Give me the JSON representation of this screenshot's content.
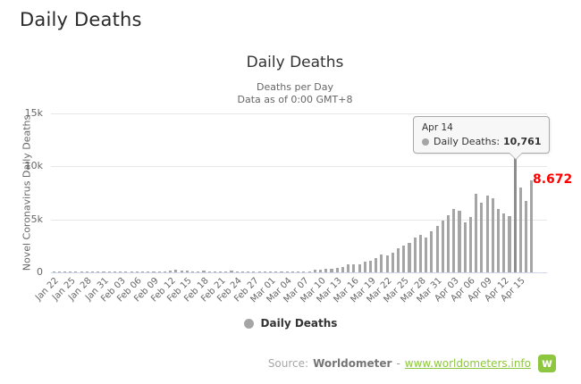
{
  "page": {
    "title": "Daily Deaths"
  },
  "chart": {
    "title": "Daily Deaths",
    "subtitle_line1": "Deaths per Day",
    "subtitle_line2": "Data as of 0:00 GMT+8",
    "y_axis_title": "Novel Coronavirus Daily Deaths",
    "legend_label": "Daily Deaths",
    "last_point_label": "8.672",
    "colors": {
      "bar": "#a5a5a5",
      "grid": "#e7e7e7",
      "axis_line": "#ccd6eb",
      "label_text": "#666666",
      "title_text": "#333333",
      "last_point_red": "#ff0000",
      "tooltip_bg": "#f7f7f7",
      "tooltip_border": "#a9a9a9",
      "brand_green": "#8dc63f"
    }
  },
  "tooltip": {
    "date": "Apr 14",
    "series_label": "Daily Deaths:",
    "value": "10,761"
  },
  "footer": {
    "source_label": "Source:",
    "source_name": "Worldometer",
    "separator": "-",
    "link": "www.worldometers.info",
    "logo_letter": "w"
  },
  "chart_data": {
    "type": "bar",
    "title": "Daily Deaths",
    "subtitle": [
      "Deaths per Day",
      "Data as of 0:00 GMT+8"
    ],
    "ylabel": "Novel Coronavirus Daily Deaths",
    "ylim": [
      0,
      15000
    ],
    "y_ticks": [
      "0",
      "5k",
      "10k",
      "15k"
    ],
    "grid": true,
    "legend": [
      "Daily Deaths"
    ],
    "legend_position": "bottom",
    "hover_index": 83,
    "hover_point": {
      "x": "Apr 14",
      "value": 10761
    },
    "last_point": {
      "x": "Apr 17",
      "value": 8672,
      "label": "8.672"
    },
    "x": [
      "Jan 22",
      "Jan 23",
      "Jan 24",
      "Jan 25",
      "Jan 26",
      "Jan 27",
      "Jan 28",
      "Jan 29",
      "Jan 30",
      "Jan 31",
      "Feb 01",
      "Feb 02",
      "Feb 03",
      "Feb 04",
      "Feb 05",
      "Feb 06",
      "Feb 07",
      "Feb 08",
      "Feb 09",
      "Feb 10",
      "Feb 11",
      "Feb 12",
      "Feb 13",
      "Feb 14",
      "Feb 15",
      "Feb 16",
      "Feb 17",
      "Feb 18",
      "Feb 19",
      "Feb 20",
      "Feb 21",
      "Feb 22",
      "Feb 23",
      "Feb 24",
      "Feb 25",
      "Feb 26",
      "Feb 27",
      "Feb 28",
      "Feb 29",
      "Mar 01",
      "Mar 02",
      "Mar 03",
      "Mar 04",
      "Mar 05",
      "Mar 06",
      "Mar 07",
      "Mar 08",
      "Mar 09",
      "Mar 10",
      "Mar 11",
      "Mar 12",
      "Mar 13",
      "Mar 14",
      "Mar 15",
      "Mar 16",
      "Mar 17",
      "Mar 18",
      "Mar 19",
      "Mar 20",
      "Mar 21",
      "Mar 22",
      "Mar 23",
      "Mar 24",
      "Mar 25",
      "Mar 26",
      "Mar 27",
      "Mar 28",
      "Mar 29",
      "Mar 30",
      "Mar 31",
      "Apr 01",
      "Apr 02",
      "Apr 03",
      "Apr 04",
      "Apr 05",
      "Apr 06",
      "Apr 07",
      "Apr 08",
      "Apr 09",
      "Apr 10",
      "Apr 11",
      "Apr 12",
      "Apr 13",
      "Apr 14",
      "Apr 15",
      "Apr 16",
      "Apr 17"
    ],
    "values": [
      9,
      17,
      16,
      15,
      24,
      26,
      26,
      38,
      43,
      46,
      45,
      57,
      64,
      66,
      72,
      73,
      86,
      89,
      97,
      108,
      97,
      146,
      254,
      143,
      143,
      106,
      98,
      136,
      116,
      119,
      112,
      97,
      150,
      71,
      52,
      60,
      44,
      47,
      39,
      58,
      65,
      70,
      84,
      80,
      99,
      104,
      97,
      225,
      271,
      330,
      343,
      432,
      507,
      719,
      783,
      793,
      977,
      1094,
      1365,
      1646,
      1602,
      1872,
      2273,
      2541,
      2818,
      3294,
      3528,
      3256,
      3840,
      4404,
      4882,
      5423,
      5960,
      5812,
      4717,
      5237,
      7382,
      6580,
      7236,
      6994,
      5975,
      5549,
      5348,
      10761,
      7978,
      6750,
      8672
    ],
    "x_tick_labels": [
      "Jan 22",
      "Jan 25",
      "Jan 28",
      "Jan 31",
      "Feb 03",
      "Feb 06",
      "Feb 09",
      "Feb 12",
      "Feb 15",
      "Feb 18",
      "Feb 21",
      "Feb 24",
      "Feb 27",
      "Mar 01",
      "Mar 04",
      "Mar 07",
      "Mar 10",
      "Mar 13",
      "Mar 16",
      "Mar 19",
      "Mar 22",
      "Mar 25",
      "Mar 28",
      "Mar 31",
      "Apr 03",
      "Apr 06",
      "Apr 09",
      "Apr 12",
      "Apr 15"
    ],
    "x_tick_step": 3
  }
}
